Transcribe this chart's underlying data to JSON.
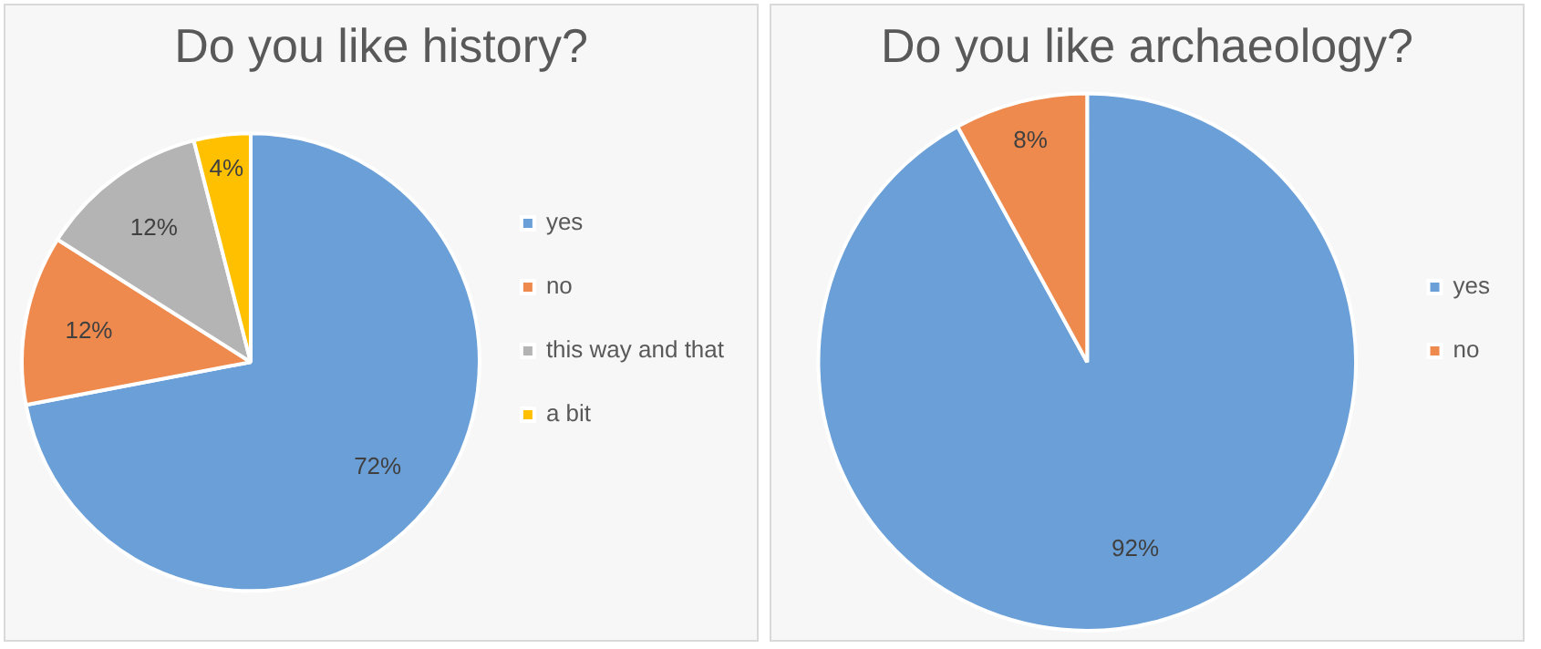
{
  "chart_data": [
    {
      "type": "pie",
      "title": "Do you like history?",
      "categories": [
        "yes",
        "no",
        "this way and that",
        "a bit"
      ],
      "values": [
        72,
        12,
        12,
        4
      ],
      "colors": [
        "#6a9fd8",
        "#ee8a4e",
        "#b4b4b4",
        "#ffc000"
      ],
      "value_labels": [
        "72%",
        "12%",
        "12%",
        "4%"
      ],
      "legend": "right"
    },
    {
      "type": "pie",
      "title": "Do you like archaeology?",
      "categories": [
        "yes",
        "no"
      ],
      "values": [
        92,
        8
      ],
      "colors": [
        "#6a9fd8",
        "#ee8a4e"
      ],
      "value_labels": [
        "92%",
        "8%"
      ],
      "legend": "right"
    }
  ]
}
